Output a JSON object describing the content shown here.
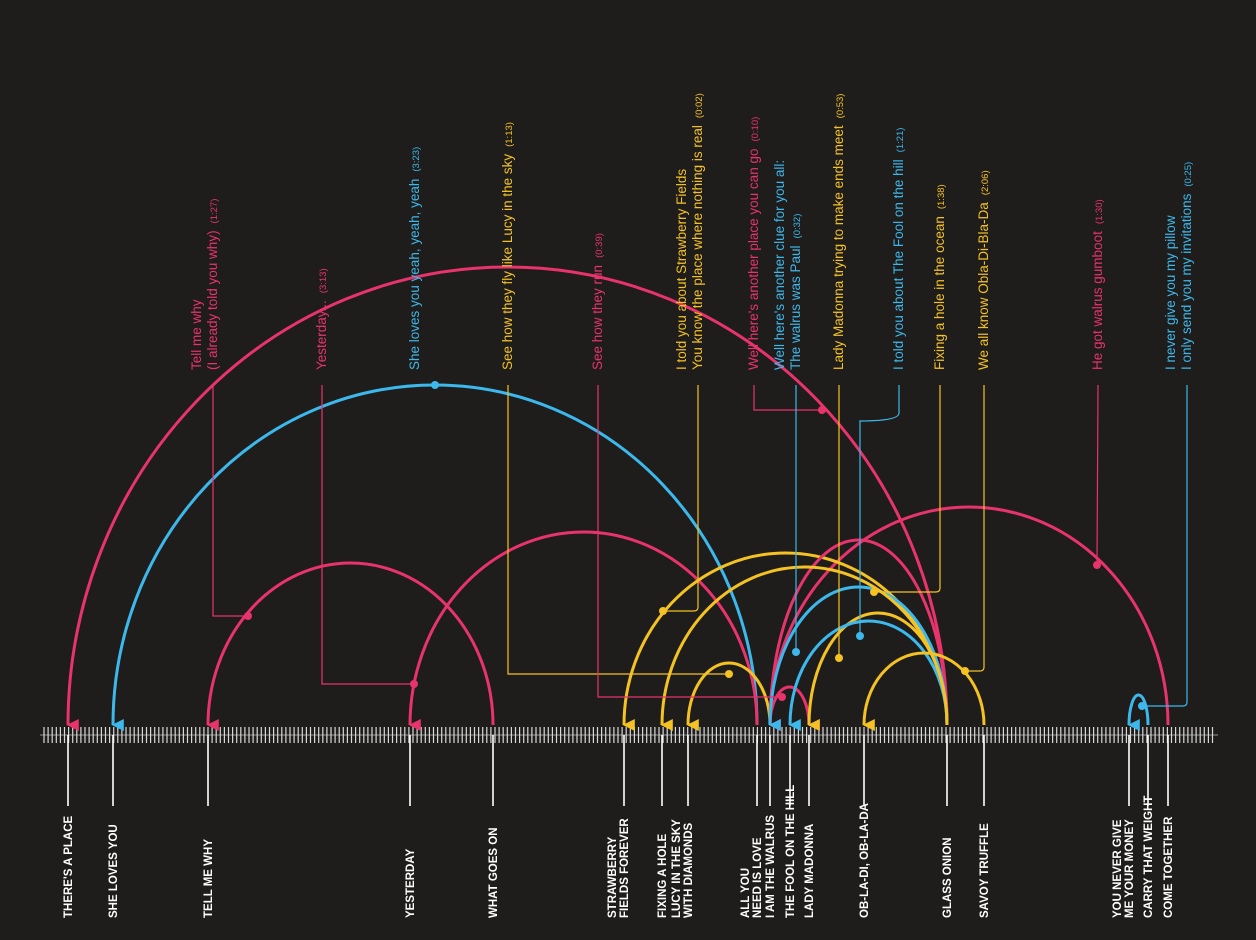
{
  "colors": {
    "background": "#1e1d1b",
    "pink": "#e8336d",
    "blue": "#3db8ec",
    "yellow": "#f5c223",
    "axis": "#ffffff"
  },
  "songs": [
    {
      "id": "theres_a_place",
      "lines": [
        "THERE'S A PLACE"
      ]
    },
    {
      "id": "she_loves_you",
      "lines": [
        "SHE LOVES YOU"
      ]
    },
    {
      "id": "tell_me_why",
      "lines": [
        "TELL ME WHY"
      ]
    },
    {
      "id": "yesterday",
      "lines": [
        "YESTERDAY"
      ]
    },
    {
      "id": "what_goes_on",
      "lines": [
        "WHAT GOES ON"
      ]
    },
    {
      "id": "strawberry_fields",
      "lines": [
        "STRAWBERRY",
        "FIELDS FOREVER"
      ]
    },
    {
      "id": "fixing_a_hole",
      "lines": [
        "FIXING A HOLE"
      ]
    },
    {
      "id": "lucy",
      "lines": [
        "LUCY IN THE SKY",
        "WITH DIAMONDS"
      ]
    },
    {
      "id": "all_you_need",
      "lines": [
        "ALL YOU",
        "NEED IS LOVE"
      ]
    },
    {
      "id": "i_am_the_walrus",
      "lines": [
        "I AM THE WALRUS"
      ]
    },
    {
      "id": "fool_on_the_hill",
      "lines": [
        "THE FOOL ON THE HILL"
      ]
    },
    {
      "id": "lady_madonna",
      "lines": [
        "LADY MADONNA"
      ]
    },
    {
      "id": "obladi",
      "lines": [
        "OB-LA-DI, OB-LA-DA"
      ]
    },
    {
      "id": "glass_onion",
      "lines": [
        "GLASS ONION"
      ]
    },
    {
      "id": "savoy_truffle",
      "lines": [
        "SAVOY TRUFFLE"
      ]
    },
    {
      "id": "you_never_give",
      "lines": [
        "YOU NEVER GIVE",
        "ME YOUR MONEY"
      ]
    },
    {
      "id": "carry_that_weight",
      "lines": [
        "CARRY THAT WEIGHT"
      ]
    },
    {
      "id": "come_together",
      "lines": [
        "COME TOGETHER"
      ]
    }
  ],
  "references": [
    {
      "id": "ref_theres_a_place",
      "from": "glass_onion",
      "to": "theres_a_place",
      "color": "pink",
      "lines": [],
      "time": ""
    },
    {
      "id": "ref_she_loves_you",
      "from": "all_you_need",
      "to": "she_loves_you",
      "color": "blue",
      "lines": [
        "She loves you yeah, yeah, yeah"
      ],
      "time": "(3:23)"
    },
    {
      "id": "ref_tell_me_why",
      "from": "what_goes_on",
      "to": "tell_me_why",
      "color": "pink",
      "lines": [
        "Tell me why",
        "(I already told you why)"
      ],
      "time": "(1:27)"
    },
    {
      "id": "ref_yesterday",
      "from": "all_you_need",
      "to": "yesterday",
      "color": "pink",
      "lines": [
        "Yesterday..."
      ],
      "time": "(3:13)"
    },
    {
      "id": "ref_come_together",
      "from": "come_together",
      "to": "i_am_the_walrus",
      "color": "pink",
      "lines": [
        "He got walrus gumboot"
      ],
      "time": "(1:30)"
    },
    {
      "id": "ref_lucy_sky",
      "from": "i_am_the_walrus",
      "to": "lucy",
      "color": "yellow",
      "lines": [
        "See how they fly like Lucy in the sky"
      ],
      "time": "(1:13)"
    },
    {
      "id": "ref_see_how_they_run",
      "from": "i_am_the_walrus",
      "to": "lady_madonna",
      "color": "pink",
      "lines": [
        "See how they run"
      ],
      "time": "(0:39)"
    },
    {
      "id": "ref_strawberry",
      "from": "glass_onion",
      "to": "strawberry_fields",
      "color": "yellow",
      "lines": [
        "I told you about Strawberry Fields",
        "You know the place where nothing is real"
      ],
      "time": "(0:02)"
    },
    {
      "id": "ref_another_place",
      "from": "glass_onion",
      "to": "i_am_the_walrus",
      "color": "pink",
      "lines": [
        "Well here's another place you can go"
      ],
      "time": "(0:10)"
    },
    {
      "id": "ref_walrus_paul",
      "from": "glass_onion",
      "to": "i_am_the_walrus",
      "color": "blue",
      "lines": [
        "Well here's another clue for you all:",
        "The walrus was Paul"
      ],
      "time": "(0:32)"
    },
    {
      "id": "ref_lady_madonna",
      "from": "glass_onion",
      "to": "lady_madonna",
      "color": "yellow",
      "lines": [
        "Lady Madonna trying to make ends meet"
      ],
      "time": "(0:53)"
    },
    {
      "id": "ref_fool_hill",
      "from": "glass_onion",
      "to": "fool_on_the_hill",
      "color": "blue",
      "lines": [
        "I told you about The Fool on the hill"
      ],
      "time": "(1:21)"
    },
    {
      "id": "ref_fixing_hole",
      "from": "glass_onion",
      "to": "fixing_a_hole",
      "color": "yellow",
      "lines": [
        "Fixing a hole in the ocean"
      ],
      "time": "(1:38)"
    },
    {
      "id": "ref_obladi",
      "from": "savoy_truffle",
      "to": "obladi",
      "color": "yellow",
      "lines": [
        "We all know Obla-Di-Bla-Da"
      ],
      "time": "(2:06)"
    },
    {
      "id": "ref_pillow",
      "from": "carry_that_weight",
      "to": "you_never_give",
      "color": "blue",
      "lines": [
        "I never give you my pillow",
        "I only send you my invitations"
      ],
      "time": "(0:25)"
    }
  ]
}
